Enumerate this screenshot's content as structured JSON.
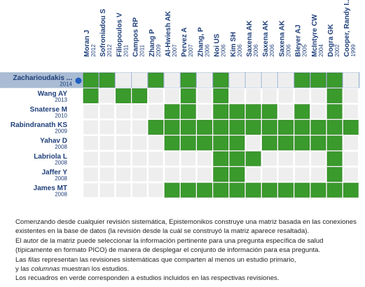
{
  "colors": {
    "included": "#3a9a2c",
    "included_border": "#2d7d22",
    "empty": "#eeeeee",
    "empty_border": "#ffffff",
    "highlight_row": "#a9bcd3",
    "marker": "#1f5fbf",
    "label": "#1f3f7a"
  },
  "columns": [
    {
      "name": "Moran J",
      "year": "2012"
    },
    {
      "name": "Sofroniadou S",
      "year": "2012"
    },
    {
      "name": "Filiopoulos V",
      "year": "2011"
    },
    {
      "name": "Campos RP",
      "year": "2011"
    },
    {
      "name": "Zhang P",
      "year": "2009"
    },
    {
      "name": "Al-Hwiesh AK",
      "year": "2007"
    },
    {
      "name": "Pervez A",
      "year": "2007"
    },
    {
      "name": "Zhang, P",
      "year": "2006"
    },
    {
      "name": "Noi US",
      "year": "2006"
    },
    {
      "name": "Kim SH",
      "year": "2006"
    },
    {
      "name": "Saxena AK",
      "year": "2006"
    },
    {
      "name": "Saxena AK",
      "year": "2006"
    },
    {
      "name": "Saxena AK",
      "year": "2006"
    },
    {
      "name": "Bleyer AJ",
      "year": "2005"
    },
    {
      "name": "McIntyre CW",
      "year": "2004"
    },
    {
      "name": "Dogra GK",
      "year": "2002"
    },
    {
      "name": "Cooper, Randy I...",
      "year": "1999"
    }
  ],
  "rows": [
    {
      "name": "Zacharioudakis ...",
      "year": "2014",
      "highlighted": true,
      "cells": [
        1,
        1,
        0,
        0,
        1,
        0,
        1,
        0,
        1,
        0,
        0,
        0,
        0,
        1,
        1,
        1,
        0
      ]
    },
    {
      "name": "Wang AY",
      "year": "2013",
      "highlighted": false,
      "cells": [
        1,
        0,
        1,
        1,
        0,
        0,
        1,
        0,
        1,
        0,
        0,
        0,
        0,
        0,
        0,
        1,
        0
      ]
    },
    {
      "name": "Snaterse M",
      "year": "2010",
      "highlighted": false,
      "cells": [
        0,
        0,
        0,
        0,
        0,
        1,
        1,
        0,
        1,
        1,
        1,
        1,
        0,
        1,
        0,
        1,
        0
      ]
    },
    {
      "name": "Rabindranath KS",
      "year": "2009",
      "highlighted": false,
      "cells": [
        0,
        0,
        0,
        0,
        1,
        1,
        1,
        1,
        1,
        1,
        1,
        1,
        1,
        1,
        1,
        1,
        1
      ]
    },
    {
      "name": "Yahav D",
      "year": "2008",
      "highlighted": false,
      "cells": [
        0,
        0,
        0,
        0,
        0,
        1,
        1,
        1,
        1,
        1,
        0,
        1,
        1,
        1,
        1,
        1,
        0
      ]
    },
    {
      "name": "Labriola L",
      "year": "2008",
      "highlighted": false,
      "cells": [
        0,
        0,
        0,
        0,
        0,
        0,
        0,
        0,
        1,
        1,
        1,
        0,
        0,
        0,
        0,
        1,
        0
      ]
    },
    {
      "name": "Jaffer Y",
      "year": "2008",
      "highlighted": false,
      "cells": [
        0,
        0,
        0,
        0,
        0,
        0,
        0,
        0,
        1,
        1,
        0,
        0,
        0,
        0,
        0,
        1,
        0
      ]
    },
    {
      "name": "James MT",
      "year": "2008",
      "highlighted": false,
      "cells": [
        0,
        0,
        0,
        0,
        0,
        1,
        1,
        1,
        1,
        1,
        1,
        1,
        1,
        1,
        1,
        1,
        1
      ]
    }
  ],
  "caption": {
    "line1": "Comenzando desde cualquier revisión sistemática, Epistemonikos construye una matriz basada en las conexiones existentes en la base de datos (la revisión desde la cuál se construyó la matriz aparece resaltada).",
    "line2": "El autor de la matriz puede seleccionar la información pertinente para una pregunta específica de salud (típicamente en formato PICO) de manera de desplegar el conjunto de información para esa pregunta.",
    "line3_a": "Las ",
    "line3_filas": "filas",
    "line3_b": " representan las revisiones sistemáticas que comparten al menos un estudio primario,",
    "line4_a": "y las ",
    "line4_columnas": "columnas",
    "line4_b": " muestran los estudios.",
    "line5": "Los recuadros en verde corresponden a estudios incluidos en las respectivas revisiones."
  }
}
